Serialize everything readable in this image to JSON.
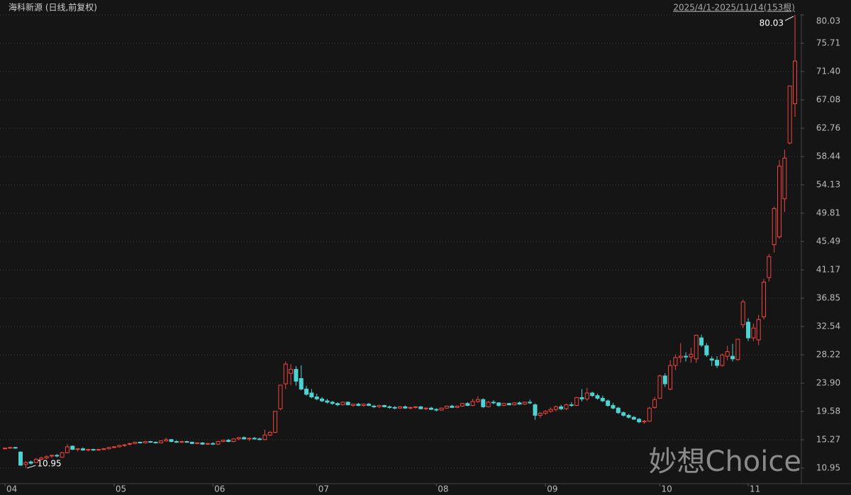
{
  "chart_data": {
    "type": "candlestick",
    "title": "海科新源 (日线,前复权)",
    "subtitle": "2025/4/1-2025/11/14(153根)",
    "watermark": "妙想Choice",
    "high_label": "80.03",
    "low_label": "10.95",
    "up_color": "#f0443f",
    "down_color": "#4fd2d2",
    "grid": true,
    "ylim": [
      8.58,
      80.14
    ],
    "yticks": [
      {
        "value": 10.95,
        "label": "10.95"
      },
      {
        "value": 15.27,
        "label": "15.27"
      },
      {
        "value": 19.58,
        "label": "19.58"
      },
      {
        "value": 23.9,
        "label": "23.90"
      },
      {
        "value": 28.22,
        "label": "28.22"
      },
      {
        "value": 32.54,
        "label": "32.54"
      },
      {
        "value": 36.85,
        "label": "36.85"
      },
      {
        "value": 41.17,
        "label": "41.17"
      },
      {
        "value": 45.49,
        "label": "45.49"
      },
      {
        "value": 49.81,
        "label": "49.81"
      },
      {
        "value": 54.13,
        "label": "54.13"
      },
      {
        "value": 58.44,
        "label": "58.44"
      },
      {
        "value": 62.76,
        "label": "62.76"
      },
      {
        "value": 67.08,
        "label": "67.08"
      },
      {
        "value": 71.4,
        "label": "71.40"
      },
      {
        "value": 75.71,
        "label": "75.71"
      },
      {
        "value": 80.03,
        "label": "80.03"
      }
    ],
    "categories": [
      "04",
      null,
      null,
      null,
      null,
      null,
      null,
      null,
      null,
      null,
      null,
      null,
      null,
      null,
      null,
      null,
      null,
      null,
      null,
      null,
      null,
      "05",
      null,
      null,
      null,
      null,
      null,
      null,
      null,
      null,
      null,
      null,
      null,
      null,
      null,
      null,
      null,
      null,
      null,
      null,
      "06",
      null,
      null,
      null,
      null,
      null,
      null,
      null,
      null,
      null,
      null,
      null,
      null,
      null,
      null,
      null,
      null,
      null,
      null,
      null,
      "07",
      null,
      null,
      null,
      null,
      null,
      null,
      null,
      null,
      null,
      null,
      null,
      null,
      null,
      null,
      null,
      null,
      null,
      null,
      null,
      null,
      null,
      null,
      "08",
      null,
      null,
      null,
      null,
      null,
      null,
      null,
      null,
      null,
      null,
      null,
      null,
      null,
      null,
      null,
      null,
      null,
      null,
      null,
      null,
      "09",
      null,
      null,
      null,
      null,
      null,
      null,
      null,
      null,
      null,
      null,
      null,
      null,
      null,
      null,
      null,
      null,
      null,
      null,
      null,
      null,
      null,
      "10",
      null,
      null,
      null,
      null,
      null,
      null,
      null,
      null,
      null,
      null,
      null,
      null,
      null,
      null,
      null,
      null,
      "11",
      null,
      null,
      null,
      null,
      null,
      null,
      null,
      null,
      null
    ],
    "ohlc": [
      [
        13.9,
        14.1,
        13.8,
        14.0
      ],
      [
        14.0,
        14.2,
        13.9,
        14.1
      ],
      [
        14.1,
        14.2,
        13.9,
        14.0
      ],
      [
        13.4,
        13.5,
        11.3,
        11.4
      ],
      [
        11.5,
        12.0,
        10.95,
        11.8
      ],
      [
        11.9,
        12.1,
        11.5,
        11.7
      ],
      [
        11.8,
        12.5,
        11.7,
        12.3
      ],
      [
        12.3,
        12.7,
        12.1,
        12.5
      ],
      [
        12.5,
        12.9,
        12.3,
        12.7
      ],
      [
        12.8,
        13.0,
        12.5,
        12.9
      ],
      [
        12.9,
        13.1,
        12.6,
        12.8
      ],
      [
        12.6,
        13.4,
        12.5,
        13.3
      ],
      [
        13.3,
        14.6,
        13.2,
        14.2
      ],
      [
        14.3,
        14.4,
        13.7,
        13.8
      ],
      [
        13.8,
        14.0,
        13.5,
        13.9
      ],
      [
        13.9,
        14.1,
        13.6,
        13.7
      ],
      [
        13.7,
        13.9,
        13.5,
        13.8
      ],
      [
        13.8,
        13.9,
        13.6,
        13.7
      ],
      [
        13.7,
        13.9,
        13.6,
        13.8
      ],
      [
        13.8,
        14.0,
        13.7,
        13.9
      ],
      [
        13.9,
        14.2,
        13.8,
        14.1
      ],
      [
        14.1,
        14.3,
        14.0,
        14.2
      ],
      [
        14.2,
        14.5,
        14.1,
        14.4
      ],
      [
        14.4,
        14.6,
        14.2,
        14.5
      ],
      [
        14.6,
        14.8,
        14.4,
        14.7
      ],
      [
        14.7,
        15.0,
        14.6,
        14.9
      ],
      [
        14.9,
        15.0,
        14.7,
        14.8
      ],
      [
        14.8,
        15.1,
        14.7,
        15.0
      ],
      [
        15.0,
        15.1,
        14.8,
        14.9
      ],
      [
        14.9,
        15.0,
        14.7,
        14.8
      ],
      [
        14.8,
        15.2,
        14.7,
        15.1
      ],
      [
        15.1,
        15.6,
        15.0,
        15.3
      ],
      [
        15.3,
        15.4,
        14.9,
        15.0
      ],
      [
        15.0,
        15.2,
        14.8,
        14.9
      ],
      [
        14.9,
        15.1,
        14.8,
        15.0
      ],
      [
        15.0,
        15.1,
        14.8,
        14.9
      ],
      [
        14.9,
        15.0,
        14.6,
        14.7
      ],
      [
        14.7,
        14.9,
        14.6,
        14.8
      ],
      [
        14.8,
        14.9,
        14.5,
        14.6
      ],
      [
        14.6,
        14.8,
        14.5,
        14.7
      ],
      [
        14.7,
        14.9,
        14.5,
        14.6
      ],
      [
        14.6,
        15.1,
        14.5,
        15.0
      ],
      [
        15.0,
        15.3,
        14.9,
        15.2
      ],
      [
        15.2,
        15.4,
        14.9,
        15.0
      ],
      [
        15.0,
        15.5,
        14.9,
        15.4
      ],
      [
        15.4,
        15.7,
        15.2,
        15.6
      ],
      [
        15.6,
        15.8,
        15.3,
        15.4
      ],
      [
        15.4,
        15.6,
        15.1,
        15.5
      ],
      [
        15.5,
        15.7,
        15.3,
        15.4
      ],
      [
        15.4,
        15.6,
        15.2,
        15.3
      ],
      [
        15.3,
        16.8,
        15.2,
        16.0
      ],
      [
        16.0,
        16.6,
        15.8,
        16.4
      ],
      [
        16.4,
        19.6,
        16.3,
        19.6
      ],
      [
        20.0,
        23.6,
        19.8,
        23.6
      ],
      [
        23.8,
        27.2,
        23.0,
        26.8
      ],
      [
        25.4,
        26.8,
        23.6,
        26.0
      ],
      [
        26.0,
        26.5,
        23.5,
        24.2
      ],
      [
        24.6,
        26.6,
        22.8,
        23.0
      ],
      [
        23.0,
        23.5,
        22.0,
        22.2
      ],
      [
        22.4,
        23.0,
        21.6,
        21.8
      ],
      [
        21.8,
        22.3,
        21.3,
        21.5
      ],
      [
        21.5,
        21.8,
        21.0,
        21.2
      ],
      [
        21.2,
        21.5,
        20.8,
        21.0
      ],
      [
        21.0,
        21.2,
        20.6,
        20.8
      ],
      [
        20.8,
        21.0,
        20.4,
        20.6
      ],
      [
        20.6,
        21.1,
        20.5,
        21.0
      ],
      [
        21.0,
        21.1,
        20.5,
        20.6
      ],
      [
        20.5,
        20.8,
        20.3,
        20.7
      ],
      [
        20.7,
        20.9,
        20.4,
        20.5
      ],
      [
        20.5,
        20.8,
        20.3,
        20.7
      ],
      [
        20.7,
        20.9,
        20.4,
        20.5
      ],
      [
        20.4,
        20.6,
        20.1,
        20.3
      ],
      [
        20.3,
        20.6,
        20.1,
        20.5
      ],
      [
        20.5,
        20.6,
        20.2,
        20.3
      ],
      [
        20.3,
        20.5,
        20.0,
        20.2
      ],
      [
        20.2,
        20.4,
        19.9,
        20.1
      ],
      [
        20.1,
        20.4,
        20.0,
        20.3
      ],
      [
        20.3,
        20.5,
        20.0,
        20.1
      ],
      [
        20.1,
        20.3,
        19.9,
        20.2
      ],
      [
        20.2,
        20.4,
        20.0,
        20.3
      ],
      [
        20.3,
        20.4,
        19.9,
        20.0
      ],
      [
        20.0,
        20.2,
        19.8,
        20.1
      ],
      [
        20.1,
        20.3,
        19.8,
        19.9
      ],
      [
        19.9,
        20.1,
        19.6,
        19.8
      ],
      [
        19.8,
        20.2,
        19.7,
        20.1
      ],
      [
        20.1,
        20.5,
        20.0,
        20.4
      ],
      [
        20.4,
        20.6,
        20.1,
        20.2
      ],
      [
        20.2,
        20.5,
        20.1,
        20.4
      ],
      [
        20.4,
        20.9,
        20.3,
        20.8
      ],
      [
        20.8,
        21.0,
        20.4,
        20.5
      ],
      [
        20.5,
        21.5,
        20.4,
        21.1
      ],
      [
        21.1,
        21.9,
        20.9,
        21.4
      ],
      [
        21.4,
        21.6,
        20.1,
        20.3
      ],
      [
        20.3,
        21.2,
        20.2,
        21.0
      ],
      [
        21.0,
        21.3,
        20.7,
        20.9
      ],
      [
        20.9,
        21.0,
        20.3,
        20.5
      ],
      [
        20.5,
        20.9,
        20.4,
        20.8
      ],
      [
        20.8,
        20.9,
        20.5,
        20.6
      ],
      [
        20.6,
        21.0,
        20.5,
        20.9
      ],
      [
        20.9,
        21.1,
        20.6,
        20.7
      ],
      [
        20.7,
        21.1,
        20.6,
        21.0
      ],
      [
        21.0,
        21.4,
        20.7,
        20.9
      ],
      [
        20.6,
        20.8,
        18.3,
        19.0
      ],
      [
        19.0,
        19.5,
        18.6,
        19.3
      ],
      [
        19.3,
        19.8,
        19.1,
        19.6
      ],
      [
        19.6,
        20.2,
        19.4,
        19.9
      ],
      [
        19.9,
        20.5,
        19.6,
        20.3
      ],
      [
        20.3,
        20.6,
        19.8,
        20.0
      ],
      [
        20.0,
        20.8,
        19.8,
        20.6
      ],
      [
        20.6,
        21.0,
        20.3,
        20.5
      ],
      [
        20.5,
        21.8,
        20.4,
        21.7
      ],
      [
        21.7,
        23.0,
        21.1,
        21.5
      ],
      [
        21.5,
        23.2,
        21.2,
        22.4
      ],
      [
        22.4,
        22.6,
        21.8,
        22.0
      ],
      [
        22.0,
        22.3,
        21.4,
        21.6
      ],
      [
        21.6,
        22.0,
        21.0,
        21.2
      ],
      [
        21.2,
        21.4,
        20.3,
        20.5
      ],
      [
        20.5,
        20.9,
        19.9,
        20.1
      ],
      [
        20.1,
        20.3,
        19.2,
        19.4
      ],
      [
        19.4,
        19.6,
        18.8,
        19.0
      ],
      [
        19.0,
        19.2,
        18.5,
        18.7
      ],
      [
        18.7,
        18.9,
        18.3,
        18.4
      ],
      [
        18.4,
        18.6,
        17.8,
        18.0
      ],
      [
        18.0,
        18.3,
        17.7,
        18.1
      ],
      [
        18.1,
        20.3,
        18.0,
        20.1
      ],
      [
        20.2,
        21.8,
        20.0,
        21.4
      ],
      [
        21.6,
        25.2,
        21.5,
        25.0
      ],
      [
        25.0,
        25.4,
        23.3,
        23.8
      ],
      [
        23.0,
        27.4,
        22.8,
        26.6
      ],
      [
        26.6,
        28.3,
        25.9,
        27.8
      ],
      [
        27.8,
        30.0,
        27.0,
        28.0
      ],
      [
        28.0,
        28.6,
        27.2,
        27.9
      ],
      [
        27.9,
        29.3,
        27.0,
        28.3
      ],
      [
        27.6,
        31.3,
        27.0,
        31.2
      ],
      [
        30.8,
        31.3,
        29.4,
        29.7
      ],
      [
        29.6,
        30.0,
        27.9,
        28.2
      ],
      [
        27.6,
        28.0,
        26.5,
        27.4
      ],
      [
        27.4,
        28.0,
        26.2,
        26.6
      ],
      [
        26.6,
        28.4,
        26.4,
        28.2
      ],
      [
        28.0,
        29.6,
        27.4,
        28.7
      ],
      [
        28.0,
        29.9,
        27.2,
        27.6
      ],
      [
        27.5,
        30.6,
        27.3,
        30.6
      ],
      [
        32.8,
        36.6,
        32.3,
        36.3
      ],
      [
        33.2,
        33.8,
        30.3,
        30.8
      ],
      [
        30.8,
        33.0,
        30.3,
        32.3
      ],
      [
        30.5,
        34.3,
        29.7,
        33.6
      ],
      [
        34.0,
        39.8,
        33.6,
        39.3
      ],
      [
        40.0,
        43.6,
        39.4,
        43.2
      ],
      [
        45.0,
        50.8,
        43.8,
        50.5
      ],
      [
        46.2,
        57.9,
        45.9,
        57.0
      ],
      [
        52.0,
        59.5,
        50.0,
        58.2
      ],
      [
        60.5,
        69.2,
        60.3,
        69.2
      ],
      [
        66.5,
        80.03,
        64.5,
        73.0
      ]
    ]
  }
}
